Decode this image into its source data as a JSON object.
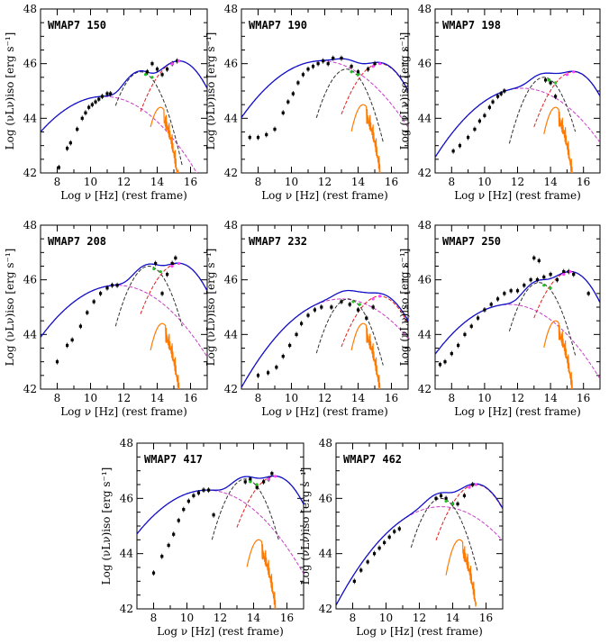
{
  "colors": {
    "model": "#1010c8",
    "torus": "#303030",
    "synchrotron": "#c83cc8",
    "disk": "#e02020",
    "host": "#ff7a00",
    "data": "#000000",
    "accent_points_green": "#20c020",
    "accent_points_magenta": "#ff40ff"
  },
  "chart_data": [
    {
      "type": "line",
      "title": "WMAP7 150",
      "xlabel": "Log ν [Hz] (rest frame)",
      "ylabel": "Log (νLν)iso [erg s⁻¹]",
      "xlim": [
        7,
        17
      ],
      "ylim": [
        42,
        48
      ],
      "xticks": [
        8,
        10,
        12,
        14,
        16
      ],
      "yticks": [
        42,
        44,
        46,
        48
      ],
      "components": {
        "sync_peak": [
          10.8,
          44.8
        ],
        "torus_peak": [
          13.0,
          45.7
        ],
        "disk_peak": [
          15.3,
          46.1
        ],
        "host_peak": [
          14.2,
          44.4
        ]
      },
      "series": [
        {
          "name": "",
          "role": "data",
          "points": [
            [
              8.1,
              42.2
            ],
            [
              8.6,
              42.9
            ],
            [
              8.8,
              43.1
            ],
            [
              9.2,
              43.6
            ],
            [
              9.5,
              44.0
            ],
            [
              9.7,
              44.2
            ],
            [
              9.9,
              44.4
            ],
            [
              10.1,
              44.5
            ],
            [
              10.3,
              44.6
            ],
            [
              10.5,
              44.7
            ],
            [
              10.7,
              44.8
            ],
            [
              11.0,
              44.9
            ],
            [
              11.2,
              44.9
            ],
            [
              13.4,
              45.7
            ],
            [
              13.7,
              46.0
            ],
            [
              14.0,
              45.8
            ],
            [
              14.3,
              45.6
            ],
            [
              14.6,
              45.8
            ],
            [
              14.9,
              46.0
            ],
            [
              15.2,
              46.1
            ]
          ]
        }
      ]
    },
    {
      "type": "line",
      "title": "WMAP7 190",
      "xlabel": "Log ν [Hz] (rest frame)",
      "ylabel": "Log (νLν)iso [erg s⁻¹]",
      "xlim": [
        7,
        17
      ],
      "ylim": [
        42,
        48
      ],
      "xticks": [
        8,
        10,
        12,
        14,
        16
      ],
      "yticks": [
        42,
        44,
        46,
        48
      ],
      "components": {
        "sync_peak": [
          11.8,
          46.1
        ],
        "torus_peak": [
          13.3,
          45.8
        ],
        "disk_peak": [
          15.3,
          46.0
        ],
        "host_peak": [
          14.3,
          44.5
        ]
      },
      "series": [
        {
          "name": "",
          "role": "data",
          "points": [
            [
              7.5,
              43.3
            ],
            [
              8.0,
              43.3
            ],
            [
              8.5,
              43.4
            ],
            [
              9.0,
              43.6
            ],
            [
              9.5,
              44.2
            ],
            [
              9.8,
              44.6
            ],
            [
              10.1,
              44.9
            ],
            [
              10.4,
              45.3
            ],
            [
              10.7,
              45.6
            ],
            [
              11.0,
              45.8
            ],
            [
              11.3,
              45.9
            ],
            [
              11.6,
              46.0
            ],
            [
              11.9,
              46.1
            ],
            [
              12.2,
              46.0
            ],
            [
              12.5,
              46.2
            ],
            [
              13.0,
              46.2
            ],
            [
              13.6,
              45.9
            ],
            [
              14.0,
              45.7
            ],
            [
              14.6,
              45.8
            ],
            [
              15.0,
              46.0
            ]
          ]
        }
      ]
    },
    {
      "type": "line",
      "title": "WMAP7 198",
      "xlabel": "Log ν [Hz] (rest frame)",
      "ylabel": "Log (νLν)iso [erg s⁻¹]",
      "xlim": [
        7,
        17
      ],
      "ylim": [
        42,
        48
      ],
      "xticks": [
        8,
        10,
        12,
        14,
        16
      ],
      "yticks": [
        42,
        44,
        46,
        48
      ],
      "components": {
        "sync_peak": [
          12.3,
          45.1
        ],
        "torus_peak": [
          13.6,
          45.5
        ],
        "disk_peak": [
          15.4,
          45.7
        ],
        "host_peak": [
          14.3,
          44.4
        ]
      },
      "series": [
        {
          "name": "",
          "role": "data",
          "points": [
            [
              8.1,
              42.8
            ],
            [
              8.5,
              43.0
            ],
            [
              9.0,
              43.3
            ],
            [
              9.4,
              43.6
            ],
            [
              9.7,
              43.9
            ],
            [
              10.0,
              44.1
            ],
            [
              10.3,
              44.4
            ],
            [
              10.5,
              44.6
            ],
            [
              10.8,
              44.8
            ],
            [
              11.0,
              44.9
            ],
            [
              11.2,
              45.0
            ],
            [
              13.7,
              45.4
            ],
            [
              14.0,
              45.3
            ],
            [
              14.3,
              44.8
            ]
          ]
        }
      ]
    },
    {
      "type": "line",
      "title": "WMAP7 208",
      "xlabel": "Log ν [Hz] (rest frame)",
      "ylabel": "Log (νLν)iso [erg s⁻¹]",
      "xlim": [
        7,
        17
      ],
      "ylim": [
        42,
        48
      ],
      "xticks": [
        8,
        10,
        12,
        14,
        16
      ],
      "yticks": [
        42,
        44,
        46,
        48
      ],
      "components": {
        "sync_peak": [
          11.6,
          45.8
        ],
        "torus_peak": [
          13.5,
          46.5
        ],
        "disk_peak": [
          15.3,
          46.6
        ],
        "host_peak": [
          14.3,
          44.4
        ]
      },
      "series": [
        {
          "name": "",
          "role": "data",
          "points": [
            [
              8.0,
              43.0
            ],
            [
              8.6,
              43.6
            ],
            [
              8.9,
              43.8
            ],
            [
              9.4,
              44.3
            ],
            [
              9.8,
              44.8
            ],
            [
              10.2,
              45.2
            ],
            [
              10.6,
              45.5
            ],
            [
              11.0,
              45.7
            ],
            [
              11.3,
              45.8
            ],
            [
              11.6,
              45.8
            ],
            [
              13.9,
              46.6
            ],
            [
              14.3,
              45.5
            ],
            [
              14.6,
              46.2
            ],
            [
              14.9,
              46.6
            ],
            [
              15.1,
              46.8
            ]
          ]
        }
      ]
    },
    {
      "type": "line",
      "title": "WMAP7 232",
      "xlabel": "Log ν [Hz] (rest frame)",
      "ylabel": "Log (νLν)iso [erg s⁻¹]",
      "xlim": [
        7,
        17
      ],
      "ylim": [
        42,
        48
      ],
      "xticks": [
        8,
        10,
        12,
        14,
        16
      ],
      "yticks": [
        42,
        44,
        46,
        48
      ],
      "components": {
        "sync_peak": [
          13.0,
          45.3
        ],
        "torus_peak": [
          13.4,
          45.3
        ],
        "disk_peak": [
          15.3,
          45.4
        ],
        "host_peak": [
          14.3,
          44.4
        ]
      },
      "series": [
        {
          "name": "",
          "role": "data",
          "points": [
            [
              8.0,
              42.5
            ],
            [
              8.6,
              42.6
            ],
            [
              9.1,
              42.8
            ],
            [
              9.5,
              43.2
            ],
            [
              9.9,
              43.6
            ],
            [
              10.3,
              44.0
            ],
            [
              10.6,
              44.4
            ],
            [
              11.0,
              44.7
            ],
            [
              11.4,
              44.9
            ],
            [
              11.8,
              45.0
            ],
            [
              12.4,
              45.0
            ],
            [
              13.0,
              45.2
            ],
            [
              13.5,
              45.1
            ],
            [
              14.0,
              44.9
            ],
            [
              14.5,
              44.6
            ],
            [
              14.9,
              45.0
            ]
          ]
        }
      ]
    },
    {
      "type": "line",
      "title": "WMAP7 250",
      "xlabel": "Log ν [Hz] (rest frame)",
      "ylabel": "Log (νLν)iso [erg s⁻¹]",
      "xlim": [
        7,
        17
      ],
      "ylim": [
        42,
        48
      ],
      "xticks": [
        8,
        10,
        12,
        14,
        16
      ],
      "yticks": [
        42,
        44,
        46,
        48
      ],
      "components": {
        "sync_peak": [
          11.5,
          45.1
        ],
        "torus_peak": [
          13.3,
          45.9
        ],
        "disk_peak": [
          15.2,
          46.3
        ],
        "host_peak": [
          14.3,
          44.5
        ]
      },
      "series": [
        {
          "name": "",
          "role": "data",
          "points": [
            [
              7.3,
              42.9
            ],
            [
              7.6,
              43.0
            ],
            [
              8.0,
              43.3
            ],
            [
              8.4,
              43.6
            ],
            [
              8.8,
              44.0
            ],
            [
              9.2,
              44.3
            ],
            [
              9.6,
              44.6
            ],
            [
              10.0,
              44.9
            ],
            [
              10.4,
              45.1
            ],
            [
              10.8,
              45.3
            ],
            [
              11.2,
              45.5
            ],
            [
              11.6,
              45.6
            ],
            [
              12.0,
              45.6
            ],
            [
              12.4,
              45.8
            ],
            [
              12.8,
              46.0
            ],
            [
              13.2,
              46.0
            ],
            [
              13.6,
              46.1
            ],
            [
              14.0,
              46.2
            ],
            [
              14.4,
              46.0
            ],
            [
              14.8,
              46.3
            ],
            [
              15.1,
              46.3
            ],
            [
              15.4,
              46.2
            ],
            [
              13.0,
              46.8
            ],
            [
              13.3,
              46.7
            ],
            [
              16.3,
              45.5
            ]
          ]
        }
      ]
    },
    {
      "type": "line",
      "title": "WMAP7 417",
      "xlabel": "Log ν [Hz] (rest frame)",
      "ylabel": "Log (νLν)iso [erg s⁻¹]",
      "xlim": [
        7,
        17
      ],
      "ylim": [
        42,
        48
      ],
      "xticks": [
        8,
        10,
        12,
        14,
        16
      ],
      "yticks": [
        42,
        44,
        46,
        48
      ],
      "components": {
        "sync_peak": [
          11.2,
          46.3
        ],
        "torus_peak": [
          13.5,
          46.7
        ],
        "disk_peak": [
          15.3,
          46.8
        ],
        "host_peak": [
          14.3,
          44.5
        ]
      },
      "series": [
        {
          "name": "",
          "role": "data",
          "points": [
            [
              8.0,
              43.3
            ],
            [
              8.5,
              43.9
            ],
            [
              8.9,
              44.3
            ],
            [
              9.2,
              44.7
            ],
            [
              9.5,
              45.2
            ],
            [
              9.8,
              45.6
            ],
            [
              10.1,
              45.9
            ],
            [
              10.4,
              46.1
            ],
            [
              10.7,
              46.2
            ],
            [
              11.0,
              46.3
            ],
            [
              11.3,
              46.3
            ],
            [
              11.6,
              45.4
            ],
            [
              13.5,
              46.6
            ],
            [
              13.8,
              46.7
            ],
            [
              14.2,
              46.4
            ],
            [
              14.6,
              46.6
            ],
            [
              14.9,
              46.7
            ],
            [
              15.1,
              46.9
            ]
          ]
        }
      ]
    },
    {
      "type": "line",
      "title": "WMAP7 462",
      "xlabel": "Log ν [Hz] (rest frame)",
      "ylabel": "Log (νLν)iso [erg s⁻¹]",
      "xlim": [
        7,
        17
      ],
      "ylim": [
        42,
        48
      ],
      "xticks": [
        8,
        10,
        12,
        14,
        16
      ],
      "yticks": [
        42,
        44,
        46,
        48
      ],
      "components": {
        "sync_peak": [
          13.3,
          45.7
        ],
        "torus_peak": [
          13.3,
          46.0
        ],
        "disk_peak": [
          15.4,
          46.5
        ],
        "host_peak": [
          14.4,
          44.5
        ]
      },
      "series": [
        {
          "name": "",
          "role": "data",
          "points": [
            [
              8.1,
              43.0
            ],
            [
              8.5,
              43.4
            ],
            [
              8.9,
              43.7
            ],
            [
              9.3,
              44.0
            ],
            [
              9.6,
              44.2
            ],
            [
              9.9,
              44.4
            ],
            [
              10.2,
              44.6
            ],
            [
              10.5,
              44.8
            ],
            [
              10.8,
              44.9
            ],
            [
              13.0,
              46.0
            ],
            [
              13.3,
              46.1
            ],
            [
              13.6,
              46.0
            ],
            [
              14.0,
              45.8
            ],
            [
              14.3,
              45.8
            ],
            [
              14.7,
              46.1
            ],
            [
              15.2,
              46.5
            ]
          ]
        }
      ]
    }
  ]
}
